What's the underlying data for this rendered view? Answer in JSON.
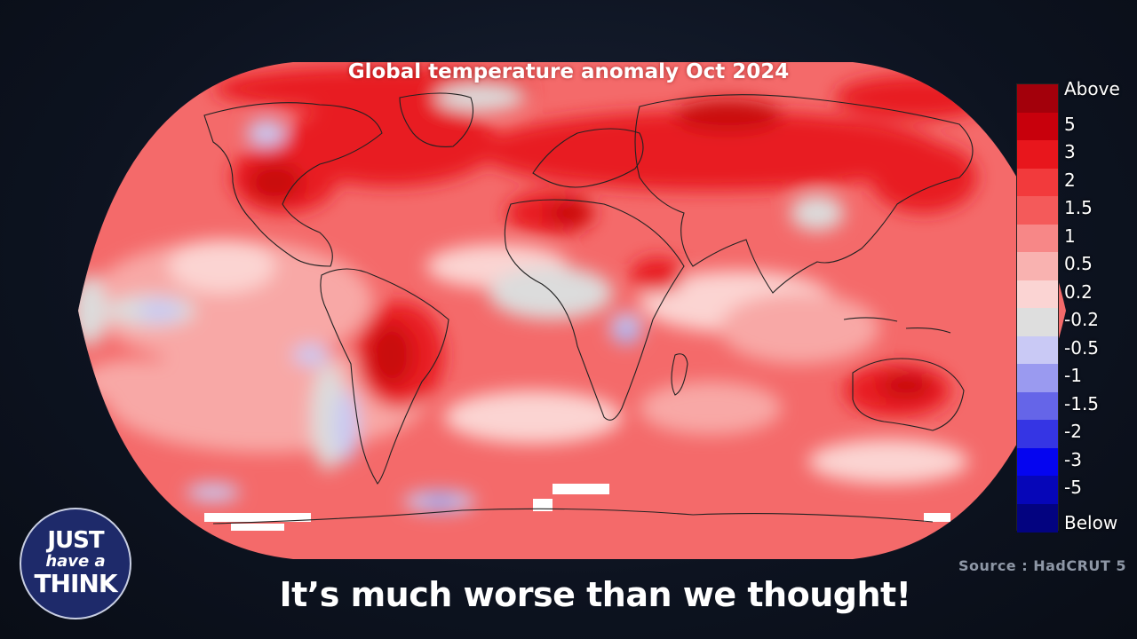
{
  "map": {
    "title": "Global temperature anomaly Oct 2024",
    "colors": {
      "base": "#f46a6a",
      "strong": "#e81f24",
      "very_strong": "#c9070d",
      "light": "#f8a8a6",
      "pale": "#fbd4d2",
      "neutral": "#dcdcdc",
      "cool": "#c9c9f2",
      "cold": "#8d8de6",
      "no_data": "#ffffff",
      "coastline": "#222222"
    }
  },
  "legend": {
    "items": [
      {
        "label": "Above",
        "color": "#a3000b"
      },
      {
        "label": "5",
        "color": "#c8000c"
      },
      {
        "label": "3",
        "color": "#e8161c"
      },
      {
        "label": "2",
        "color": "#f23a3c"
      },
      {
        "label": "1.5",
        "color": "#f45a5a"
      },
      {
        "label": "1",
        "color": "#f78787"
      },
      {
        "label": "0.5",
        "color": "#f9b2b0"
      },
      {
        "label": "0.2",
        "color": "#fbd4d3"
      },
      {
        "label": "-0.2",
        "color": "#dedede"
      },
      {
        "label": "-0.5",
        "color": "#c9c9f5"
      },
      {
        "label": "-1",
        "color": "#9a9af0"
      },
      {
        "label": "-1.5",
        "color": "#6565e8"
      },
      {
        "label": "-2",
        "color": "#3535e4"
      },
      {
        "label": "-3",
        "color": "#0505f0"
      },
      {
        "label": "-5",
        "color": "#0606b8"
      },
      {
        "label": "Below",
        "color": "#030380"
      }
    ]
  },
  "source": "Source : HadCRUT 5",
  "subtitle": "It’s much worse than we thought!",
  "logo": {
    "line1": "JUST",
    "line2": "have a",
    "line3": "THINK"
  }
}
